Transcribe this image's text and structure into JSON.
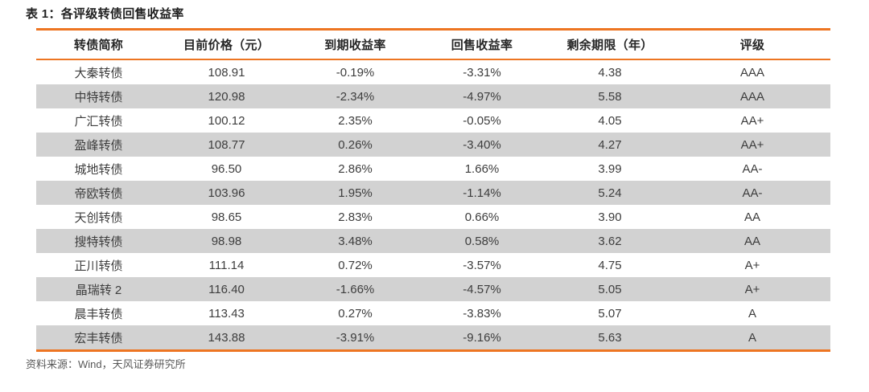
{
  "colors": {
    "accent": "#ED7522",
    "stripe": "#D2D2D2",
    "title_text": "#1F1F1F",
    "header_text": "#262626",
    "body_text": "#3D3D3D",
    "footer_text": "#595959"
  },
  "title": "表 1：各评级转债回售收益率",
  "table": {
    "columns": [
      "转债简称",
      "目前价格（元）",
      "到期收益率",
      "回售收益率",
      "剩余期限（年）",
      "评级"
    ],
    "rows": [
      [
        "大秦转债",
        "108.91",
        "-0.19%",
        "-3.31%",
        "4.38",
        "AAA"
      ],
      [
        "中特转债",
        "120.98",
        "-2.34%",
        "-4.97%",
        "5.58",
        "AAA"
      ],
      [
        "广汇转债",
        "100.12",
        "2.35%",
        "-0.05%",
        "4.05",
        "AA+"
      ],
      [
        "盈峰转债",
        "108.77",
        "0.26%",
        "-3.40%",
        "4.27",
        "AA+"
      ],
      [
        "城地转债",
        "96.50",
        "2.86%",
        "1.66%",
        "3.99",
        "AA-"
      ],
      [
        "帝欧转债",
        "103.96",
        "1.95%",
        "-1.14%",
        "5.24",
        "AA-"
      ],
      [
        "天创转债",
        "98.65",
        "2.83%",
        "0.66%",
        "3.90",
        "AA"
      ],
      [
        "搜特转债",
        "98.98",
        "3.48%",
        "0.58%",
        "3.62",
        "AA"
      ],
      [
        "正川转债",
        "111.14",
        "0.72%",
        "-3.57%",
        "4.75",
        "A+"
      ],
      [
        "晶瑞转 2",
        "116.40",
        "-1.66%",
        "-4.57%",
        "5.05",
        "A+"
      ],
      [
        "晨丰转债",
        "113.43",
        "0.27%",
        "-3.83%",
        "5.07",
        "A"
      ],
      [
        "宏丰转债",
        "143.88",
        "-3.91%",
        "-9.16%",
        "5.63",
        "A"
      ]
    ]
  },
  "footer": {
    "source": "资料来源：Wind，天风证券研究所"
  }
}
